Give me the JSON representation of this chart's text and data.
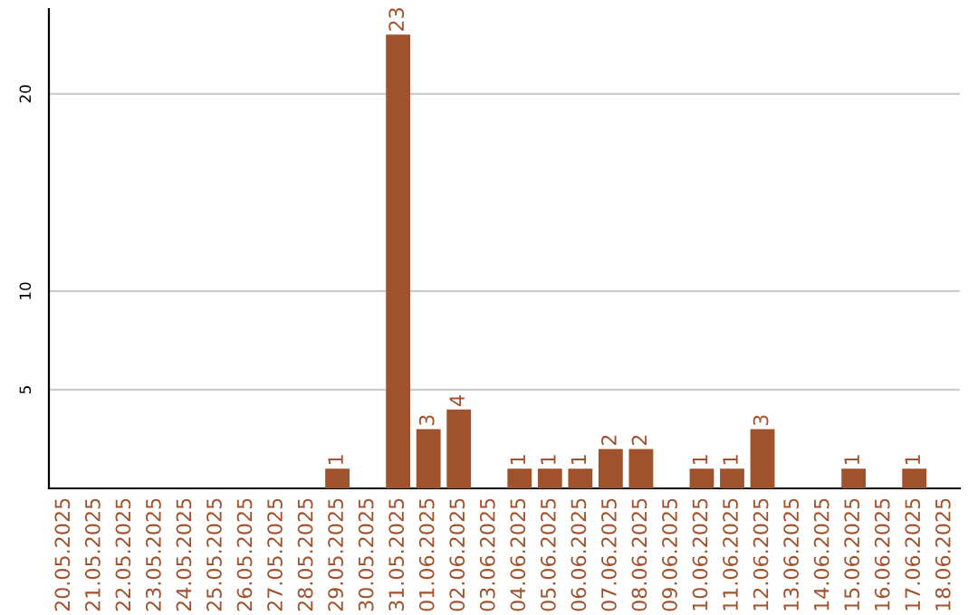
{
  "chart_data": {
    "type": "bar",
    "categories": [
      "20.05.2025",
      "21.05.2025",
      "22.05.2025",
      "23.05.2025",
      "24.05.2025",
      "25.05.2025",
      "26.05.2025",
      "27.05.2025",
      "28.05.2025",
      "29.05.2025",
      "30.05.2025",
      "31.05.2025",
      "01.06.2025",
      "02.06.2025",
      "03.06.2025",
      "04.06.2025",
      "05.06.2025",
      "06.06.2025",
      "07.06.2025",
      "08.06.2025",
      "09.06.2025",
      "10.06.2025",
      "11.06.2025",
      "12.06.2025",
      "13.06.2025",
      "14.06.2025",
      "15.06.2025",
      "16.06.2025",
      "17.06.2025",
      "18.06.2025"
    ],
    "values": [
      0,
      0,
      0,
      0,
      0,
      0,
      0,
      0,
      0,
      1,
      0,
      23,
      3,
      4,
      0,
      1,
      1,
      1,
      2,
      2,
      0,
      1,
      1,
      3,
      0,
      0,
      1,
      0,
      1,
      0
    ],
    "value_labels": [
      null,
      null,
      null,
      null,
      null,
      null,
      null,
      null,
      null,
      "1",
      null,
      "23",
      "3",
      "4",
      null,
      "1",
      "1",
      "1",
      "2",
      "2",
      null,
      "1",
      "1",
      "3",
      null,
      null,
      "1",
      null,
      "1",
      null
    ],
    "color": "#a0522d",
    "ylim": [
      0,
      24.3
    ],
    "yticks": [
      5,
      10,
      20
    ],
    "grid": "y"
  }
}
